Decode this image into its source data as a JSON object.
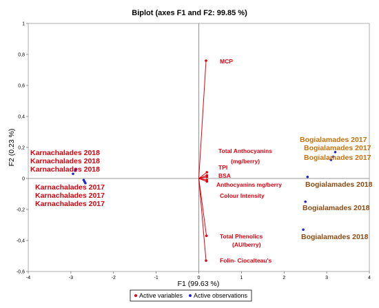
{
  "chart_data": {
    "type": "scatter",
    "title": "Biplot (axes F1 and F2: 99.85 %)",
    "xlabel": "F1 (99.63 %)",
    "ylabel": "F2 (0.23 %)",
    "xlim": [
      -4,
      4
    ],
    "ylim": [
      -0.6,
      1
    ],
    "x_ticks": [
      "-4",
      "-3",
      "-2",
      "-1",
      "0",
      "1",
      "2",
      "3",
      "4"
    ],
    "y_ticks": [
      "-0,6",
      "-0,4",
      "-0,2",
      "0",
      "0,2",
      "0,4",
      "0,6",
      "0,8",
      "1"
    ],
    "grid": false,
    "legend": {
      "placement": "bottom-center",
      "entries": [
        {
          "label": "Active variables",
          "color": "#e3000f"
        },
        {
          "label": "Active observations",
          "color": "#2222cc"
        }
      ]
    },
    "variables": [
      {
        "label": "MCP",
        "x": 0.17,
        "y": 0.76
      },
      {
        "label": "Total Anthocyanins",
        "label2": "(mg/berry)",
        "x": 0.19,
        "y": 0.04
      },
      {
        "label": "TPI",
        "x": 0.19,
        "y": 0.02
      },
      {
        "label": "BSA",
        "x": 0.19,
        "y": 0.01
      },
      {
        "label": "Anthocyanins mg/berry",
        "x": 0.19,
        "y": -0.01
      },
      {
        "label": "Colour Intensity",
        "x": 0.19,
        "y": -0.02
      },
      {
        "label": "Total Phenolics",
        "label2": "(AU/berry)",
        "x": 0.18,
        "y": -0.37
      },
      {
        "label": "Folin- Ciocalteau's",
        "x": 0.17,
        "y": -0.53
      }
    ],
    "observations": [
      {
        "label": "Karnachalades 2018",
        "x": -2.95,
        "y": 0.03,
        "group": "Karnachalades 2018"
      },
      {
        "label": "Karnachalades 2018",
        "x": -2.9,
        "y": 0.05,
        "group": "Karnachalades 2018"
      },
      {
        "label": "Karnachalades 2018",
        "x": -2.88,
        "y": 0.06,
        "group": "Karnachalades 2018"
      },
      {
        "label": "Karnachalades 2017",
        "x": -2.7,
        "y": -0.01,
        "group": "Karnachalades 2017"
      },
      {
        "label": "Karnachalades 2017",
        "x": -2.68,
        "y": -0.02,
        "group": "Karnachalades 2017"
      },
      {
        "label": "Karnachalades 2017",
        "x": -2.66,
        "y": -0.03,
        "group": "Karnachalades 2017"
      },
      {
        "label": "Bogialamades 2017",
        "x": 3.2,
        "y": 0.17,
        "group": "Bogialamades 2017"
      },
      {
        "label": "Bogialamades 2017",
        "x": 3.15,
        "y": 0.14,
        "group": "Bogialamades 2017"
      },
      {
        "label": "Bogialamades 2017",
        "x": 3.1,
        "y": 0.12,
        "group": "Bogialamades 2017"
      },
      {
        "label": "Bogialamades 2018",
        "x": 2.55,
        "y": 0.01,
        "group": "Bogialamades 2018"
      },
      {
        "label": "Bogialamades 2018",
        "x": 2.5,
        "y": -0.15,
        "group": "Bogialamades 2018"
      },
      {
        "label": "Bogialamades 2018",
        "x": 2.45,
        "y": -0.33,
        "group": "Bogialamades 2018"
      }
    ]
  }
}
